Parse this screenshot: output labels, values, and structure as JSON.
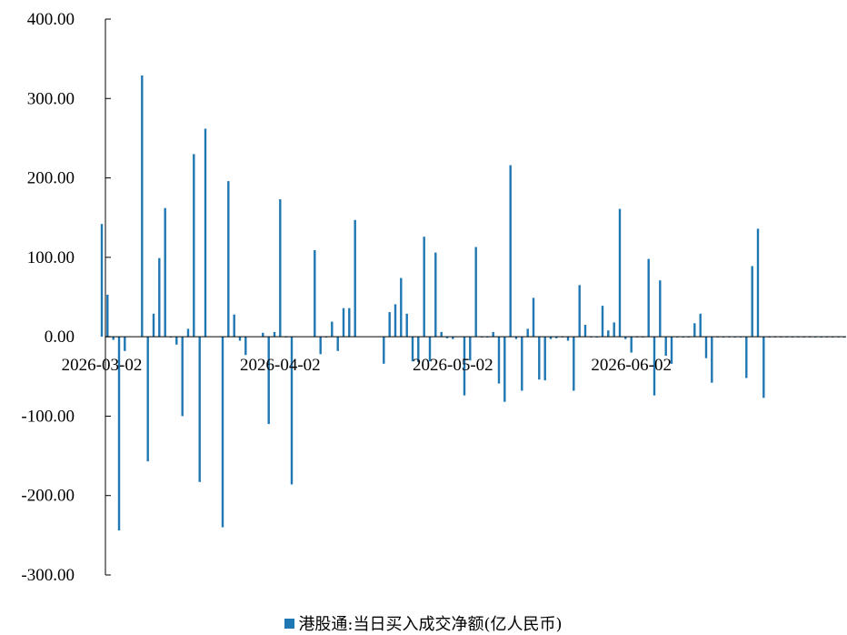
{
  "chart_data": {
    "type": "bar",
    "legend": "港股通:当日买入成交净额(亿人民币)",
    "legend_position": "bottom",
    "color": "#1f77b4",
    "ylim": [
      -300,
      400
    ],
    "yticks": [
      "400.00",
      "300.00",
      "200.00",
      "100.00",
      "0.00",
      "-100.00",
      "-200.00",
      "-300.00"
    ],
    "ytick_values": [
      400,
      300,
      200,
      100,
      0,
      -100,
      -200,
      -300
    ],
    "xticks": [
      "2026-03-02",
      "2026-04-02",
      "2026-05-02",
      "2026-06-02"
    ],
    "xtick_days": [
      0,
      31,
      61,
      92
    ],
    "grid": false,
    "series": [
      {
        "days": [
          0,
          1,
          2,
          3,
          4,
          7,
          8,
          9,
          10,
          11,
          12,
          13,
          14,
          15,
          16,
          17,
          18,
          21,
          22,
          23,
          24,
          25,
          28,
          29,
          30,
          31,
          32,
          33,
          37,
          38,
          39,
          40,
          41,
          42,
          43,
          44,
          49,
          50,
          51,
          52,
          53,
          54,
          55,
          56,
          57,
          58,
          59,
          60,
          61,
          63,
          64,
          65,
          66,
          67,
          68,
          69,
          70,
          71,
          72,
          73,
          74,
          75,
          76,
          77,
          78,
          79,
          80,
          81,
          82,
          83,
          84,
          85,
          86,
          87,
          88,
          89,
          90,
          91,
          92,
          93,
          94,
          95,
          96,
          97,
          98,
          99,
          100,
          101,
          102,
          103,
          104,
          105,
          106,
          107,
          108,
          109,
          110,
          111,
          112,
          113,
          114,
          115,
          116,
          117,
          118,
          119,
          120,
          121,
          122,
          123,
          124,
          125,
          126,
          127,
          128,
          129
        ],
        "values": [
          142,
          53,
          -4,
          -244,
          -18,
          329,
          -157,
          29,
          99,
          162,
          -1,
          -10,
          -100,
          10,
          230,
          -183,
          262,
          -240,
          196,
          28,
          -5,
          -23,
          5,
          -110,
          6,
          173,
          -1,
          -186,
          109,
          -22,
          -1,
          19,
          -18,
          36,
          36,
          147,
          -34,
          31,
          41,
          74,
          29,
          -31,
          -32,
          126,
          -31,
          106,
          6,
          -2,
          -3,
          -74,
          -30,
          113,
          -1,
          -1,
          6,
          -59,
          -82,
          216,
          -3,
          -68,
          10,
          49,
          -54,
          -55,
          -3,
          -2,
          -1,
          -5,
          -68,
          65,
          15,
          -1,
          -1,
          39,
          8,
          18,
          161,
          -3,
          -20,
          -1,
          -1,
          98,
          -74,
          71,
          -24,
          -34,
          -1,
          -1,
          -1,
          17,
          29,
          -27,
          -58,
          -1,
          -1,
          -1,
          -1,
          -1,
          -52,
          89,
          136,
          -77,
          -1,
          -1,
          -1,
          -1,
          -1,
          -1,
          -1,
          -1,
          -1,
          -1,
          -1,
          -1,
          -1,
          -1
        ]
      }
    ]
  }
}
